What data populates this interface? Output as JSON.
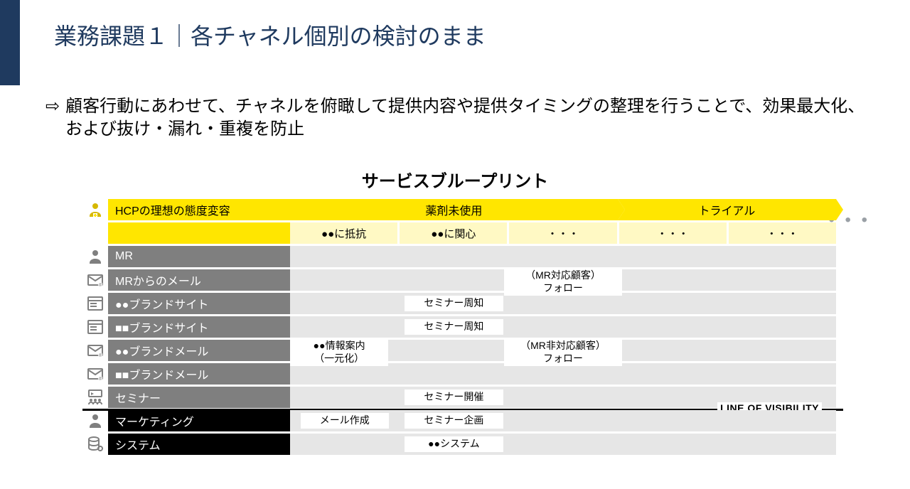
{
  "colors": {
    "title": "#1f3a5f",
    "yellow_dark": "#ffe600",
    "yellow_light": "#fff9c4",
    "gray_label": "#7f7f7f",
    "gray_lane": "#e6e6e6",
    "black_label": "#000000",
    "icon_gray": "#7f7f7f",
    "icon_yellow": "#d6b800"
  },
  "title": "業務課題１｜各チャネル個別の検討のまま",
  "subtitle": "顧客行動にあわせて、チャネルを俯瞰して提供内容や提供タイミングの整理を行うことで、効果最大化、および抜け・漏れ・重複を防止",
  "chart_title": "サービスブループリント",
  "header_label": "HCPの理想の態度変容",
  "phases": [
    {
      "label": "薬剤未使用",
      "width_pct": 60
    },
    {
      "label": "トライアル",
      "width_pct": 40
    }
  ],
  "subphases": [
    "●●に抵抗",
    "●●に関心",
    "・・・",
    "・・・",
    "・・・"
  ],
  "lanes": [
    {
      "icon": "person",
      "label": "MR",
      "bg": "gray",
      "notes": []
    },
    {
      "icon": "mail",
      "label": "MRからのメール",
      "bg": "gray",
      "notes": [
        {
          "text": "（MR対応顧客）\nフォロー",
          "col": 2.5,
          "span": 1.2,
          "tall": true
        }
      ]
    },
    {
      "icon": "site",
      "label": "●●ブランドサイト",
      "bg": "gray",
      "notes": [
        {
          "text": "セミナー周知",
          "col": 1.5,
          "span": 1
        }
      ]
    },
    {
      "icon": "site",
      "label": "■■ブランドサイト",
      "bg": "gray",
      "notes": [
        {
          "text": "セミナー周知",
          "col": 1.5,
          "span": 1
        }
      ]
    },
    {
      "icon": "mail",
      "label": "●●ブランドメール",
      "bg": "gray",
      "notes": [
        {
          "text": "●●情報案内\n（一元化）",
          "col": 0.45,
          "span": 1,
          "tall": true
        },
        {
          "text": "（MR非対応顧客）\nフォロー",
          "col": 2.5,
          "span": 1.2,
          "tall": true
        }
      ]
    },
    {
      "icon": "mail",
      "label": "■■ブランドメール",
      "bg": "gray",
      "notes": []
    },
    {
      "icon": "seminar",
      "label": "セミナー",
      "bg": "gray",
      "notes": [
        {
          "text": "セミナー開催",
          "col": 1.5,
          "span": 1
        }
      ]
    },
    {
      "icon": "person",
      "label": "マーケティング",
      "bg": "black",
      "notes": [
        {
          "text": "メール作成",
          "col": 0.5,
          "span": 0.9
        },
        {
          "text": "セミナー企画",
          "col": 1.5,
          "span": 1
        }
      ]
    },
    {
      "icon": "db",
      "label": "システム",
      "bg": "black",
      "notes": [
        {
          "text": "●●システム",
          "col": 1.5,
          "span": 1
        }
      ]
    }
  ],
  "line_of_visibility": {
    "after_lane_index": 6,
    "label": "LINE OF VISIBILITY"
  },
  "ellipsis": "●●●",
  "arrow_glyph": "⇨"
}
